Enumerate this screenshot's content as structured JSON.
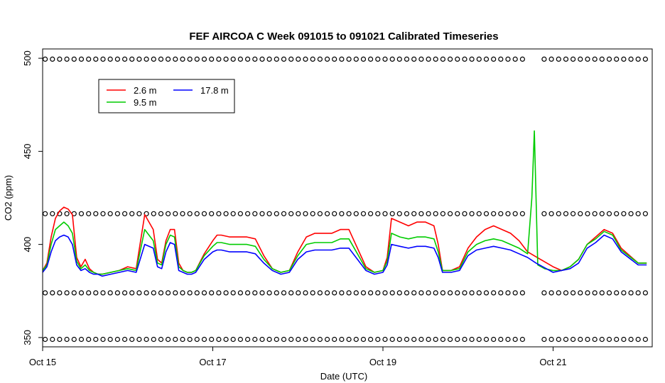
{
  "chart_data": {
    "type": "line",
    "title": "FEF AIRCOA C  Week 091015 to 091021  Calibrated Timeseries",
    "xlabel": "Date (UTC)",
    "ylabel": "CO2 (ppm)",
    "xlim": [
      15.0,
      22.165
    ],
    "ylim": [
      345,
      505
    ],
    "x_ticks": [
      {
        "x": 15,
        "label": "Oct 15"
      },
      {
        "x": 17,
        "label": "Oct 17"
      },
      {
        "x": 19,
        "label": "Oct 19"
      },
      {
        "x": 21,
        "label": "Oct 21"
      }
    ],
    "y_ticks": [
      350,
      400,
      450,
      500
    ],
    "legend": {
      "position": "top-left",
      "entries": [
        {
          "name": "2.6 m",
          "color": "#ff0000"
        },
        {
          "name": "9.5 m",
          "color": "#00cc00"
        },
        {
          "name": "17.8 m",
          "color": "#0000ff"
        }
      ]
    },
    "series": [
      {
        "name": "2.6 m",
        "color": "#ff0000",
        "x": [
          15.0,
          15.05,
          15.1,
          15.15,
          15.2,
          15.25,
          15.3,
          15.35,
          15.4,
          15.45,
          15.5,
          15.55,
          15.6,
          15.65,
          15.7,
          15.8,
          15.9,
          16.0,
          16.1,
          16.2,
          16.3,
          16.35,
          16.4,
          16.45,
          16.5,
          16.55,
          16.6,
          16.65,
          16.7,
          16.75,
          16.8,
          16.9,
          17.0,
          17.05,
          17.1,
          17.2,
          17.3,
          17.4,
          17.5,
          17.6,
          17.7,
          17.8,
          17.9,
          18.0,
          18.1,
          18.2,
          18.3,
          18.4,
          18.5,
          18.6,
          18.7,
          18.8,
          18.9,
          19.0,
          19.05,
          19.1,
          19.2,
          19.3,
          19.4,
          19.5,
          19.6,
          19.65,
          19.7,
          19.8,
          19.9,
          20.0,
          20.1,
          20.2,
          20.3,
          20.4,
          20.5,
          20.6,
          20.7,
          21.0,
          21.1,
          21.2,
          21.3,
          21.4,
          21.5,
          21.6,
          21.7,
          21.8,
          22.0,
          22.1
        ],
        "y": [
          386,
          390,
          404,
          414,
          418,
          420,
          419,
          416,
          393,
          388,
          392,
          387,
          385,
          384,
          384,
          385,
          386,
          388,
          387,
          416,
          408,
          392,
          390,
          402,
          408,
          408,
          390,
          386,
          385,
          385,
          386,
          395,
          402,
          405,
          405,
          404,
          404,
          404,
          403,
          394,
          387,
          385,
          386,
          396,
          404,
          406,
          406,
          406,
          408,
          408,
          398,
          388,
          385,
          386,
          393,
          414,
          412,
          410,
          412,
          412,
          410,
          400,
          386,
          386,
          388,
          398,
          404,
          408,
          410,
          408,
          406,
          402,
          396,
          388,
          386,
          388,
          392,
          400,
          404,
          408,
          406,
          398,
          390,
          390
        ]
      },
      {
        "name": "9.5 m",
        "color": "#00cc00",
        "x": [
          15.0,
          15.05,
          15.1,
          15.15,
          15.2,
          15.25,
          15.3,
          15.35,
          15.4,
          15.45,
          15.5,
          15.55,
          15.6,
          15.65,
          15.7,
          15.8,
          15.9,
          16.0,
          16.1,
          16.2,
          16.3,
          16.35,
          16.4,
          16.45,
          16.5,
          16.55,
          16.6,
          16.65,
          16.7,
          16.75,
          16.8,
          16.9,
          17.0,
          17.05,
          17.1,
          17.2,
          17.3,
          17.4,
          17.5,
          17.6,
          17.7,
          17.8,
          17.9,
          18.0,
          18.1,
          18.2,
          18.3,
          18.4,
          18.5,
          18.6,
          18.7,
          18.8,
          18.9,
          19.0,
          19.05,
          19.1,
          19.2,
          19.3,
          19.4,
          19.5,
          19.6,
          19.65,
          19.7,
          19.8,
          19.9,
          20.0,
          20.1,
          20.2,
          20.3,
          20.4,
          20.5,
          20.6,
          20.7,
          20.75,
          20.78,
          20.82,
          20.9,
          21.0,
          21.1,
          21.2,
          21.3,
          21.4,
          21.5,
          21.6,
          21.7,
          21.8,
          22.0,
          22.1
        ],
        "y": [
          386,
          389,
          400,
          408,
          410,
          412,
          410,
          406,
          391,
          387,
          389,
          386,
          385,
          384,
          384,
          385,
          386,
          387,
          386,
          408,
          402,
          390,
          389,
          400,
          405,
          404,
          388,
          386,
          385,
          385,
          386,
          394,
          399,
          401,
          401,
          400,
          400,
          400,
          399,
          392,
          387,
          385,
          386,
          394,
          400,
          401,
          401,
          401,
          403,
          403,
          395,
          387,
          385,
          386,
          391,
          406,
          404,
          403,
          404,
          404,
          403,
          396,
          386,
          386,
          387,
          396,
          400,
          402,
          403,
          402,
          400,
          398,
          395,
          425,
          461,
          389,
          387,
          386,
          386,
          388,
          392,
          400,
          403,
          407,
          405,
          397,
          390,
          390
        ]
      },
      {
        "name": "17.8 m",
        "color": "#0000ff",
        "x": [
          15.0,
          15.05,
          15.1,
          15.15,
          15.2,
          15.25,
          15.3,
          15.35,
          15.4,
          15.45,
          15.5,
          15.55,
          15.6,
          15.65,
          15.7,
          15.8,
          15.9,
          16.0,
          16.1,
          16.2,
          16.3,
          16.35,
          16.4,
          16.45,
          16.5,
          16.55,
          16.6,
          16.65,
          16.7,
          16.75,
          16.8,
          16.9,
          17.0,
          17.05,
          17.1,
          17.2,
          17.3,
          17.4,
          17.5,
          17.6,
          17.7,
          17.8,
          17.9,
          18.0,
          18.1,
          18.2,
          18.3,
          18.4,
          18.5,
          18.6,
          18.7,
          18.8,
          18.9,
          19.0,
          19.05,
          19.1,
          19.2,
          19.3,
          19.4,
          19.5,
          19.6,
          19.65,
          19.7,
          19.8,
          19.9,
          20.0,
          20.1,
          20.2,
          20.3,
          20.4,
          20.5,
          20.6,
          20.7,
          20.8,
          21.0,
          21.1,
          21.2,
          21.3,
          21.4,
          21.5,
          21.6,
          21.7,
          21.8,
          22.0,
          22.1
        ],
        "y": [
          385,
          388,
          396,
          402,
          404,
          405,
          404,
          400,
          389,
          386,
          387,
          385,
          384,
          384,
          383,
          384,
          385,
          386,
          385,
          400,
          398,
          388,
          387,
          396,
          401,
          400,
          386,
          385,
          384,
          384,
          385,
          392,
          396,
          397,
          397,
          396,
          396,
          396,
          395,
          390,
          386,
          384,
          385,
          392,
          396,
          397,
          397,
          397,
          398,
          398,
          392,
          386,
          384,
          385,
          389,
          400,
          399,
          398,
          399,
          399,
          398,
          393,
          385,
          385,
          386,
          394,
          397,
          398,
          399,
          398,
          397,
          395,
          393,
          390,
          385,
          386,
          387,
          390,
          398,
          401,
          405,
          403,
          396,
          389,
          389
        ]
      }
    ],
    "status_flags": {
      "color": "#000000",
      "marker": "open-circle",
      "levels": [
        349,
        374,
        416.5,
        499.5
      ],
      "x_start": 15.03,
      "x_step": 0.085,
      "x_end": 22.12,
      "gap": [
        20.72,
        20.84
      ]
    }
  }
}
